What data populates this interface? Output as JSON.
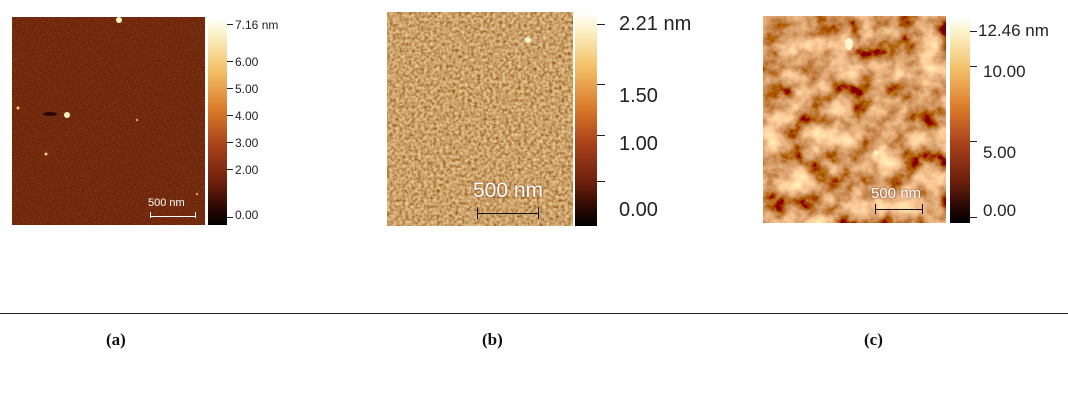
{
  "panels": [
    {
      "id": "a",
      "caption": "(a)",
      "scale_label": "500 nm",
      "colorbar": {
        "max_label": "7.16 nm",
        "ticks": [
          "6.00",
          "5.00",
          "4.00",
          "3.00",
          "2.00",
          "0.00"
        ]
      }
    },
    {
      "id": "b",
      "caption": "(b)",
      "scale_label": "500 nm",
      "colorbar": {
        "max_label": "2.21 nm",
        "ticks": [
          "1.50",
          "1.00",
          "0.00"
        ]
      }
    },
    {
      "id": "c",
      "caption": "(c)",
      "scale_label": "500 nm",
      "colorbar": {
        "max_label": "12.46 nm",
        "ticks": [
          "10.00",
          "5.00",
          "0.00"
        ]
      }
    }
  ],
  "colors": {
    "afm_dark": "#1e0601",
    "afm_mid": "#8a3812",
    "afm_light": "#f0b060",
    "afm_highlight": "#fff4c8"
  }
}
